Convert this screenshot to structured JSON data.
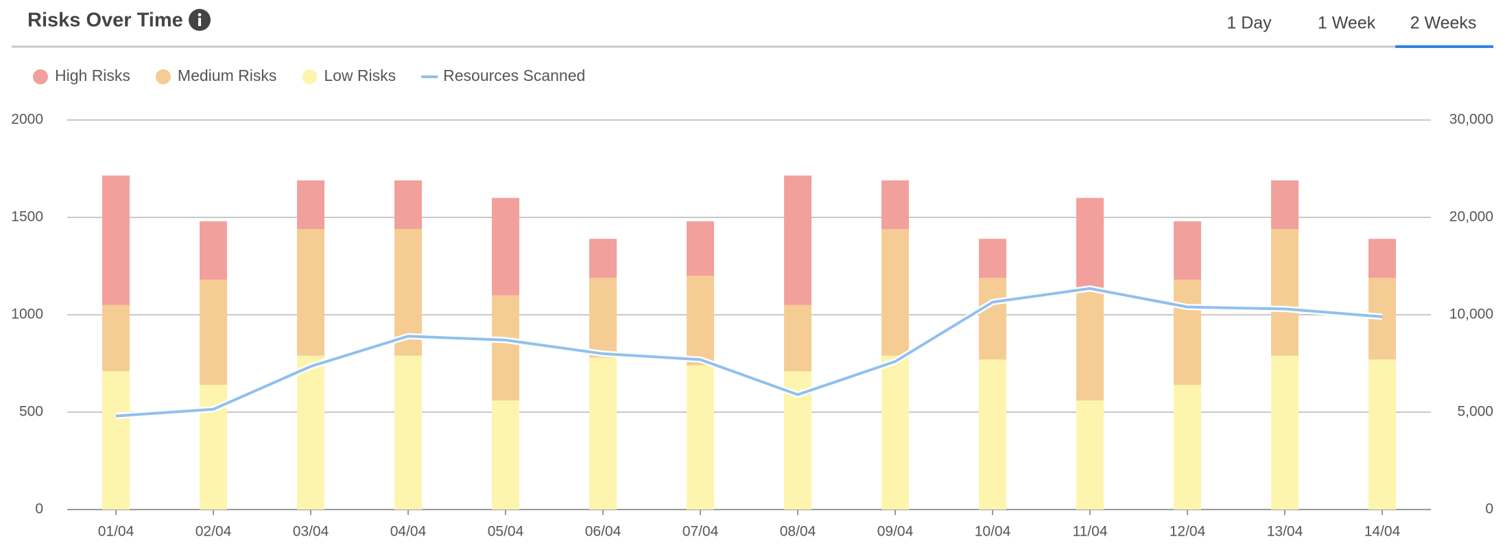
{
  "chart_data": {
    "type": "bar",
    "title": "Risks Over Time",
    "tabs": [
      "1 Day",
      "1 Week",
      "2 Weeks"
    ],
    "active_tab": 2,
    "categories": [
      "01/04",
      "02/04",
      "03/04",
      "04/04",
      "05/04",
      "06/04",
      "07/04",
      "08/04",
      "09/04",
      "10/04",
      "11/04",
      "12/04",
      "13/04",
      "14/04"
    ],
    "stacked": true,
    "series": [
      {
        "name": "High Risks",
        "color": "#f2a09c",
        "values": [
          665,
          300,
          250,
          250,
          500,
          200,
          280,
          665,
          250,
          200,
          480,
          300,
          250,
          200
        ]
      },
      {
        "name": "Medium Risks",
        "color": "#f5cd94",
        "values": [
          340,
          540,
          650,
          650,
          540,
          410,
          460,
          340,
          650,
          420,
          560,
          540,
          650,
          420
        ]
      },
      {
        "name": "Low Risks",
        "color": "#fdf5ae",
        "values": [
          710,
          640,
          790,
          790,
          560,
          780,
          740,
          710,
          790,
          770,
          560,
          640,
          790,
          770
        ]
      },
      {
        "name": "Resources Scanned",
        "type": "line",
        "axis": "y2",
        "color": "#90c0ee",
        "values": [
          4800,
          5150,
          7350,
          8900,
          8700,
          8000,
          7700,
          5900,
          7600,
          11300,
          12700,
          10800,
          10600,
          9900
        ]
      }
    ],
    "ylim": [
      0,
      2000
    ],
    "yticks": [
      0,
      500,
      1000,
      1500,
      2000
    ],
    "y2lim": [
      0,
      30000
    ],
    "y2ticks": [
      0,
      {
        "value": 5000,
        "label": "5,000"
      },
      {
        "value": 10000,
        "label": "10,000"
      },
      {
        "value": 20000,
        "label": "20,000"
      },
      {
        "value": 30000,
        "label": "30,000"
      }
    ],
    "grid": true,
    "legend": "top-left"
  }
}
